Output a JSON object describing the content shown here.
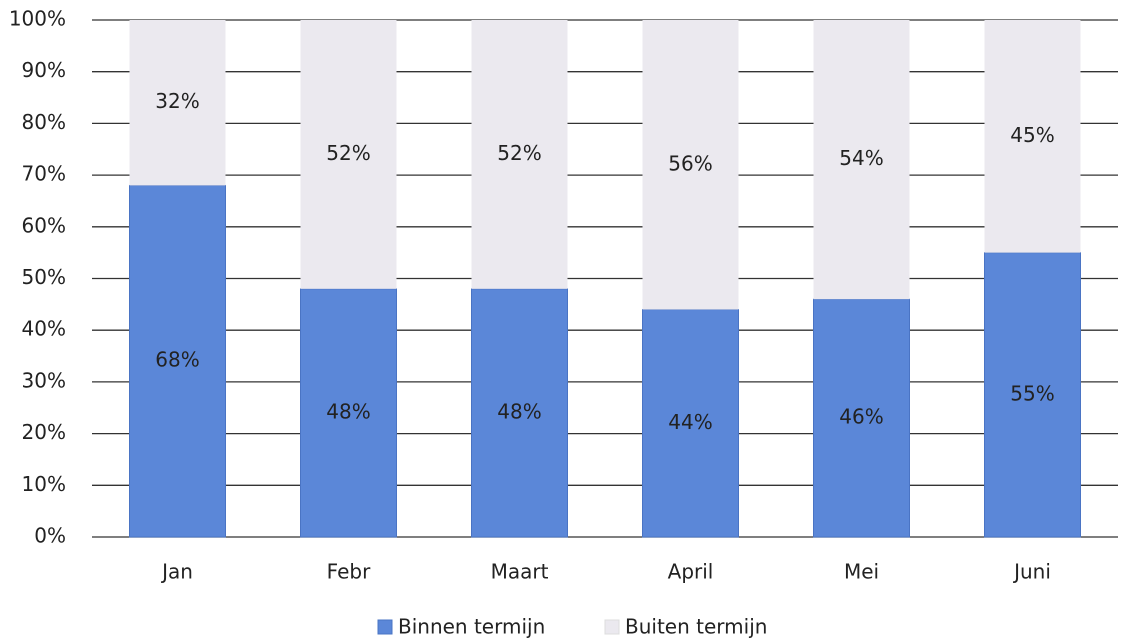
{
  "chart_data": {
    "type": "stacked_bar",
    "categories": [
      "Jan",
      "Febr",
      "Maart",
      "April",
      "Mei",
      "Juni"
    ],
    "series": [
      {
        "name": "Binnen termijn",
        "color": "#5b87d8",
        "values": [
          68,
          48,
          48,
          44,
          46,
          55
        ],
        "value_labels": [
          "68%",
          "48%",
          "48%",
          "44%",
          "46%",
          "55%"
        ]
      },
      {
        "name": "Buiten termijn",
        "color": "#ebe9ef",
        "values": [
          32,
          52,
          52,
          56,
          54,
          45
        ],
        "value_labels": [
          "32%",
          "52%",
          "52%",
          "56%",
          "54%",
          "45%"
        ]
      }
    ],
    "ylim": [
      0,
      100
    ],
    "yticks": [
      {
        "value": 0,
        "label": "0%"
      },
      {
        "value": 10,
        "label": "10%"
      },
      {
        "value": 20,
        "label": "20%"
      },
      {
        "value": 30,
        "label": "30%"
      },
      {
        "value": 40,
        "label": "40%"
      },
      {
        "value": 50,
        "label": "50%"
      },
      {
        "value": 60,
        "label": "60%"
      },
      {
        "value": 70,
        "label": "70%"
      },
      {
        "value": 80,
        "label": "80%"
      },
      {
        "value": 90,
        "label": "90%"
      },
      {
        "value": 100,
        "label": "100%"
      }
    ],
    "grid": true,
    "legend": "bottom"
  }
}
